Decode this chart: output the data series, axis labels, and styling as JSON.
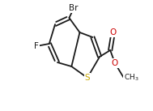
{
  "bg_color": "#ffffff",
  "bond_color": "#1a1a1a",
  "bond_lw": 1.3,
  "figsize": [
    1.89,
    1.37
  ],
  "dpi": 100,
  "atoms": {
    "S": {
      "label": "S",
      "color": "#c8a800",
      "fontsize": 7.5
    },
    "Br": {
      "label": "Br",
      "color": "#1a1a1a",
      "fontsize": 7.5
    },
    "F": {
      "label": "F",
      "color": "#1a1a1a",
      "fontsize": 7.5
    },
    "O1": {
      "label": "O",
      "color": "#cc0000",
      "fontsize": 7.5
    },
    "O2": {
      "label": "O",
      "color": "#cc0000",
      "fontsize": 7.5
    },
    "CH3": {
      "label": "CH3",
      "color": "#1a1a1a",
      "fontsize": 6.5
    }
  }
}
